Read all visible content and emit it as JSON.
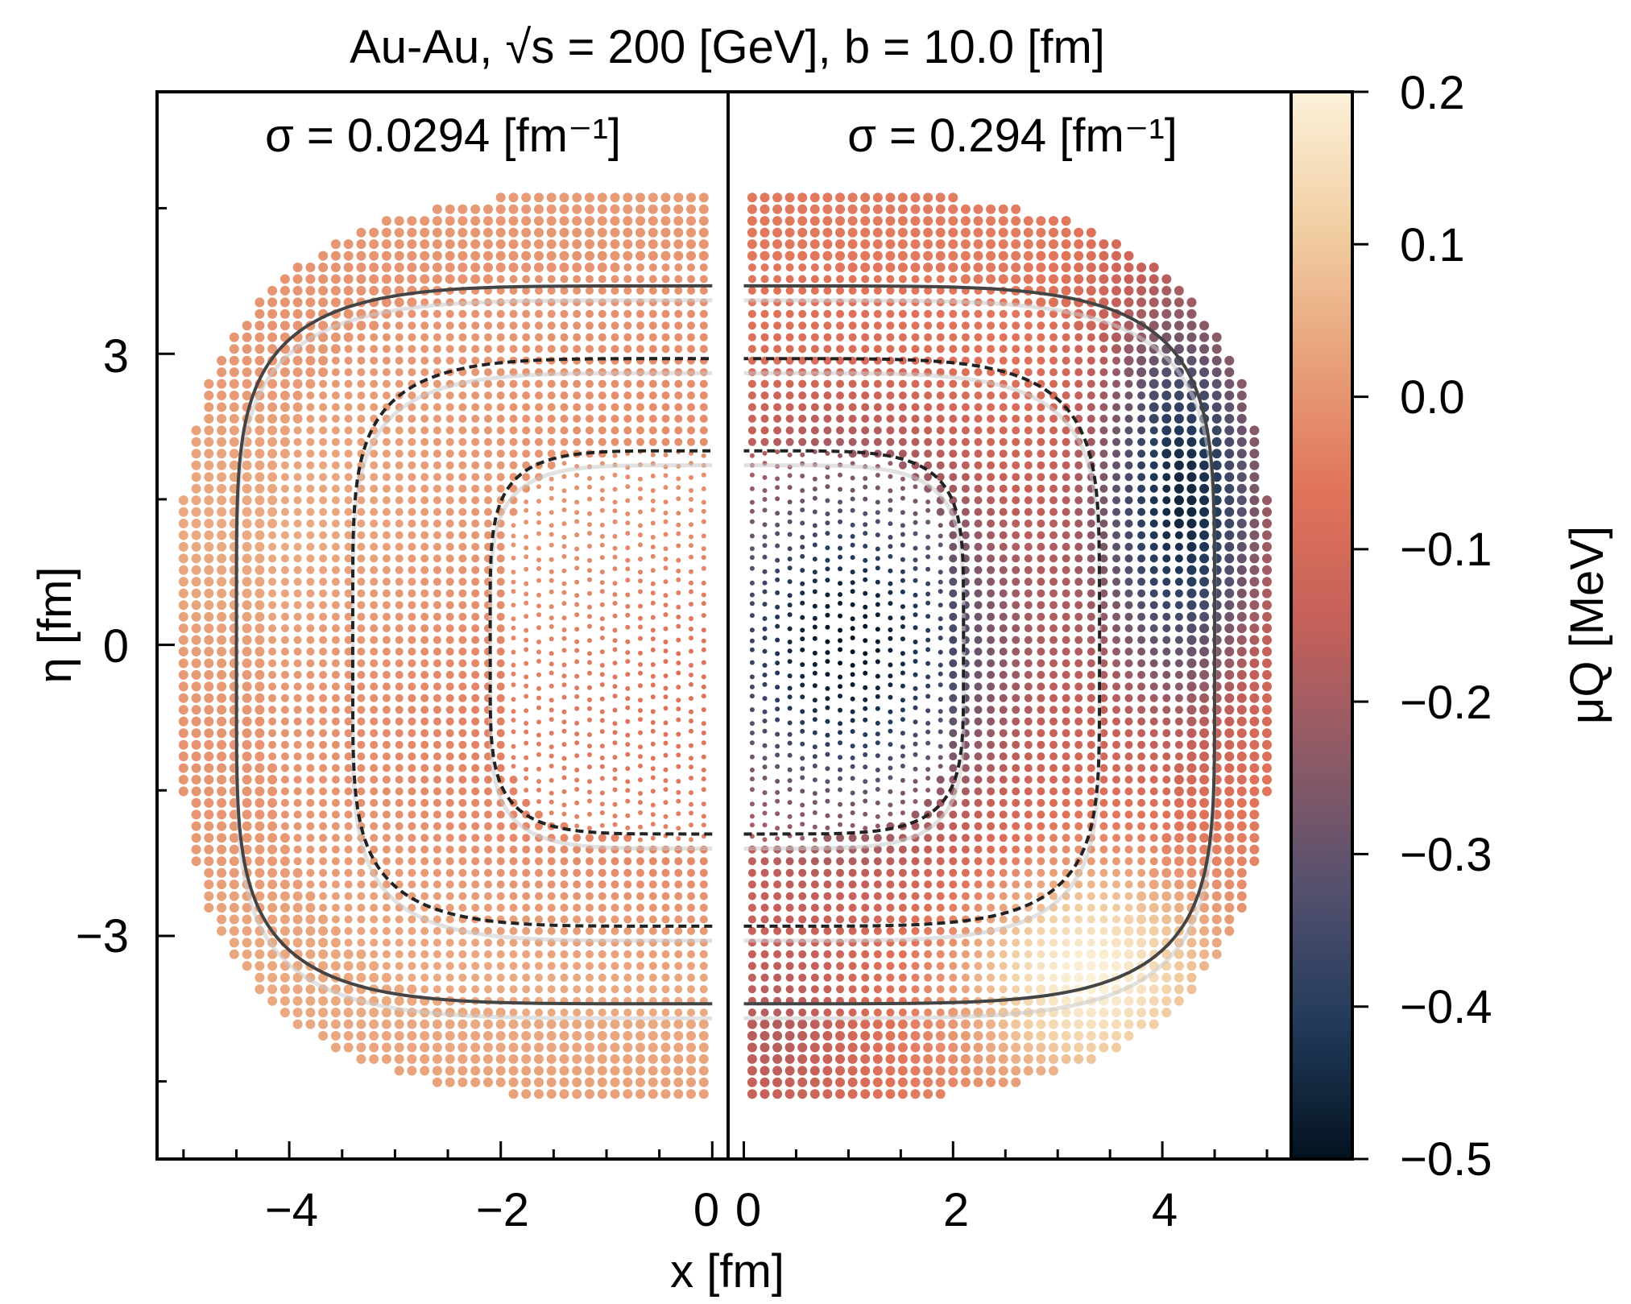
{
  "chart_data": {
    "type": "scatter",
    "title": "Au-Au,  √s = 200 [GeV], b = 10.0 [fm]",
    "xlabel": "x [fm]",
    "ylabel": "η [fm]",
    "colorbar": {
      "label": "μQ [MeV]",
      "range": [
        -0.5,
        0.2
      ],
      "ticks": [
        0.2,
        0.1,
        0.0,
        -0.1,
        -0.2,
        -0.3,
        -0.4,
        -0.5
      ],
      "tick_labels": [
        "0.2",
        "0.1",
        "0.0",
        "−0.1",
        "−0.2",
        "−0.3",
        "−0.4",
        "−0.5"
      ],
      "colormap": [
        "#03121f",
        "#213a5a",
        "#53506e",
        "#8c5a67",
        "#c4605a",
        "#e0735a",
        "#e8a17a",
        "#f2cfa4",
        "#fbf1d9"
      ]
    },
    "panels": [
      {
        "label": "σ = 0.0294 [fm⁻¹]",
        "xlim": [
          -5.25,
          0.15
        ],
        "xticks": [
          -4,
          -2,
          0
        ],
        "xtick_labels": [
          "−4",
          "−2",
          "0"
        ],
        "ylim": [
          -5.3,
          5.7
        ],
        "yticks": [
          3,
          0,
          -3
        ],
        "ytick_labels": [
          "3",
          "0",
          "−3"
        ],
        "approx_muQ_range": [
          -0.1,
          0.05
        ],
        "contours": [
          {
            "level": "inner",
            "half_width": 2.1,
            "half_height": [
              2.0,
              -1.95
            ],
            "style": "dashed"
          },
          {
            "level": "middle",
            "half_width": 3.4,
            "half_height": [
              2.95,
              -2.9
            ],
            "style": "dashed"
          },
          {
            "level": "outer",
            "half_width": 4.5,
            "half_height": [
              3.7,
              -3.7
            ],
            "style": "solid"
          }
        ]
      },
      {
        "label": "σ = 0.294 [fm⁻¹]",
        "xlim": [
          -0.15,
          5.3
        ],
        "xticks": [
          0,
          2,
          4
        ],
        "xtick_labels": [
          "0",
          "2",
          "4"
        ],
        "approx_muQ_range": [
          -0.5,
          0.2
        ],
        "contours": [
          {
            "level": "inner",
            "half_width": 2.1,
            "half_height": [
              2.0,
              -1.95
            ],
            "style": "dashed"
          },
          {
            "level": "middle",
            "half_width": 3.4,
            "half_height": [
              2.95,
              -2.9
            ],
            "style": "dashed"
          },
          {
            "level": "outer",
            "half_width": 4.5,
            "half_height": [
              3.7,
              -3.7
            ],
            "style": "solid"
          }
        ]
      }
    ]
  }
}
